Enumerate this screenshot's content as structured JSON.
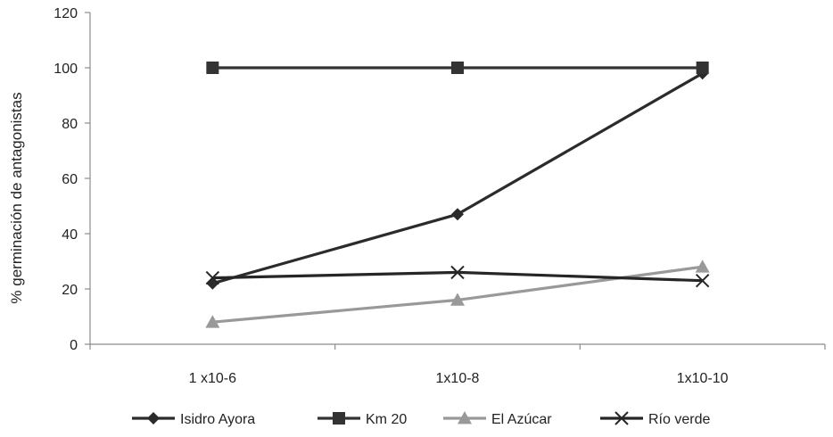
{
  "chart_data": {
    "type": "line",
    "title": "",
    "xlabel": "",
    "ylabel": "% germinación de antagonistas",
    "categories": [
      "1 x10-6",
      "1x10-8",
      "1x10-10"
    ],
    "ylim": [
      0,
      120
    ],
    "yticks": [
      0,
      20,
      40,
      60,
      80,
      100,
      120
    ],
    "grid": false,
    "legend_position": "bottom",
    "series": [
      {
        "name": "Isidro Ayora",
        "values": [
          22,
          47,
          98
        ],
        "color": "#2b2b2b",
        "marker": "diamond"
      },
      {
        "name": "Km 20",
        "values": [
          100,
          100,
          100
        ],
        "color": "#333333",
        "marker": "square"
      },
      {
        "name": "El Azúcar",
        "values": [
          8,
          16,
          28
        ],
        "color": "#999999",
        "marker": "triangle"
      },
      {
        "name": "Río verde",
        "values": [
          24,
          26,
          23
        ],
        "color": "#262626",
        "marker": "x"
      }
    ]
  }
}
